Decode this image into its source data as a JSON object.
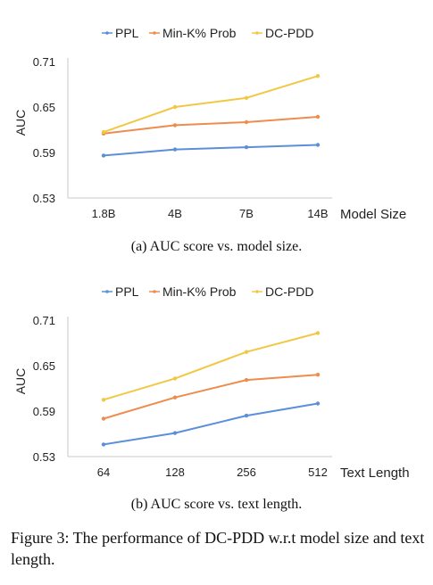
{
  "figure": {
    "caption": "Figure 3: The performance of DC-PDD w.r.t model size and text length."
  },
  "chart_data": [
    {
      "type": "line",
      "caption": "(a)  AUC score vs. model size.",
      "xlabel": "Model Size",
      "ylabel": "AUC",
      "categories": [
        "1.8B",
        "4B",
        "7B",
        "14B"
      ],
      "ylim": [
        0.53,
        0.71
      ],
      "yticks": [
        "0.53",
        "0.59",
        "0.65",
        "0.71"
      ],
      "grid": false,
      "legend_position": "top-center",
      "series": [
        {
          "name": "PPL",
          "color": "#5b8fd9",
          "values": [
            0.586,
            0.594,
            0.597,
            0.6
          ]
        },
        {
          "name": "Min-K% Prob",
          "color": "#ee8c4d",
          "values": [
            0.615,
            0.626,
            0.63,
            0.637
          ]
        },
        {
          "name": "DC-PDD",
          "color": "#f2c744",
          "values": [
            0.617,
            0.65,
            0.662,
            0.691
          ]
        }
      ]
    },
    {
      "type": "line",
      "caption": "(b)  AUC score vs. text length.",
      "xlabel": "Text Length",
      "ylabel": "AUC",
      "categories": [
        "64",
        "128",
        "256",
        "512"
      ],
      "ylim": [
        0.53,
        0.71
      ],
      "yticks": [
        "0.53",
        "0.59",
        "0.65",
        "0.71"
      ],
      "grid": false,
      "legend_position": "top-center",
      "series": [
        {
          "name": "PPL",
          "color": "#5b8fd9",
          "values": [
            0.546,
            0.561,
            0.584,
            0.6
          ]
        },
        {
          "name": "Min-K% Prob",
          "color": "#ee8c4d",
          "values": [
            0.58,
            0.608,
            0.631,
            0.638
          ]
        },
        {
          "name": "DC-PDD",
          "color": "#f2c744",
          "values": [
            0.605,
            0.633,
            0.668,
            0.693
          ]
        }
      ]
    }
  ]
}
